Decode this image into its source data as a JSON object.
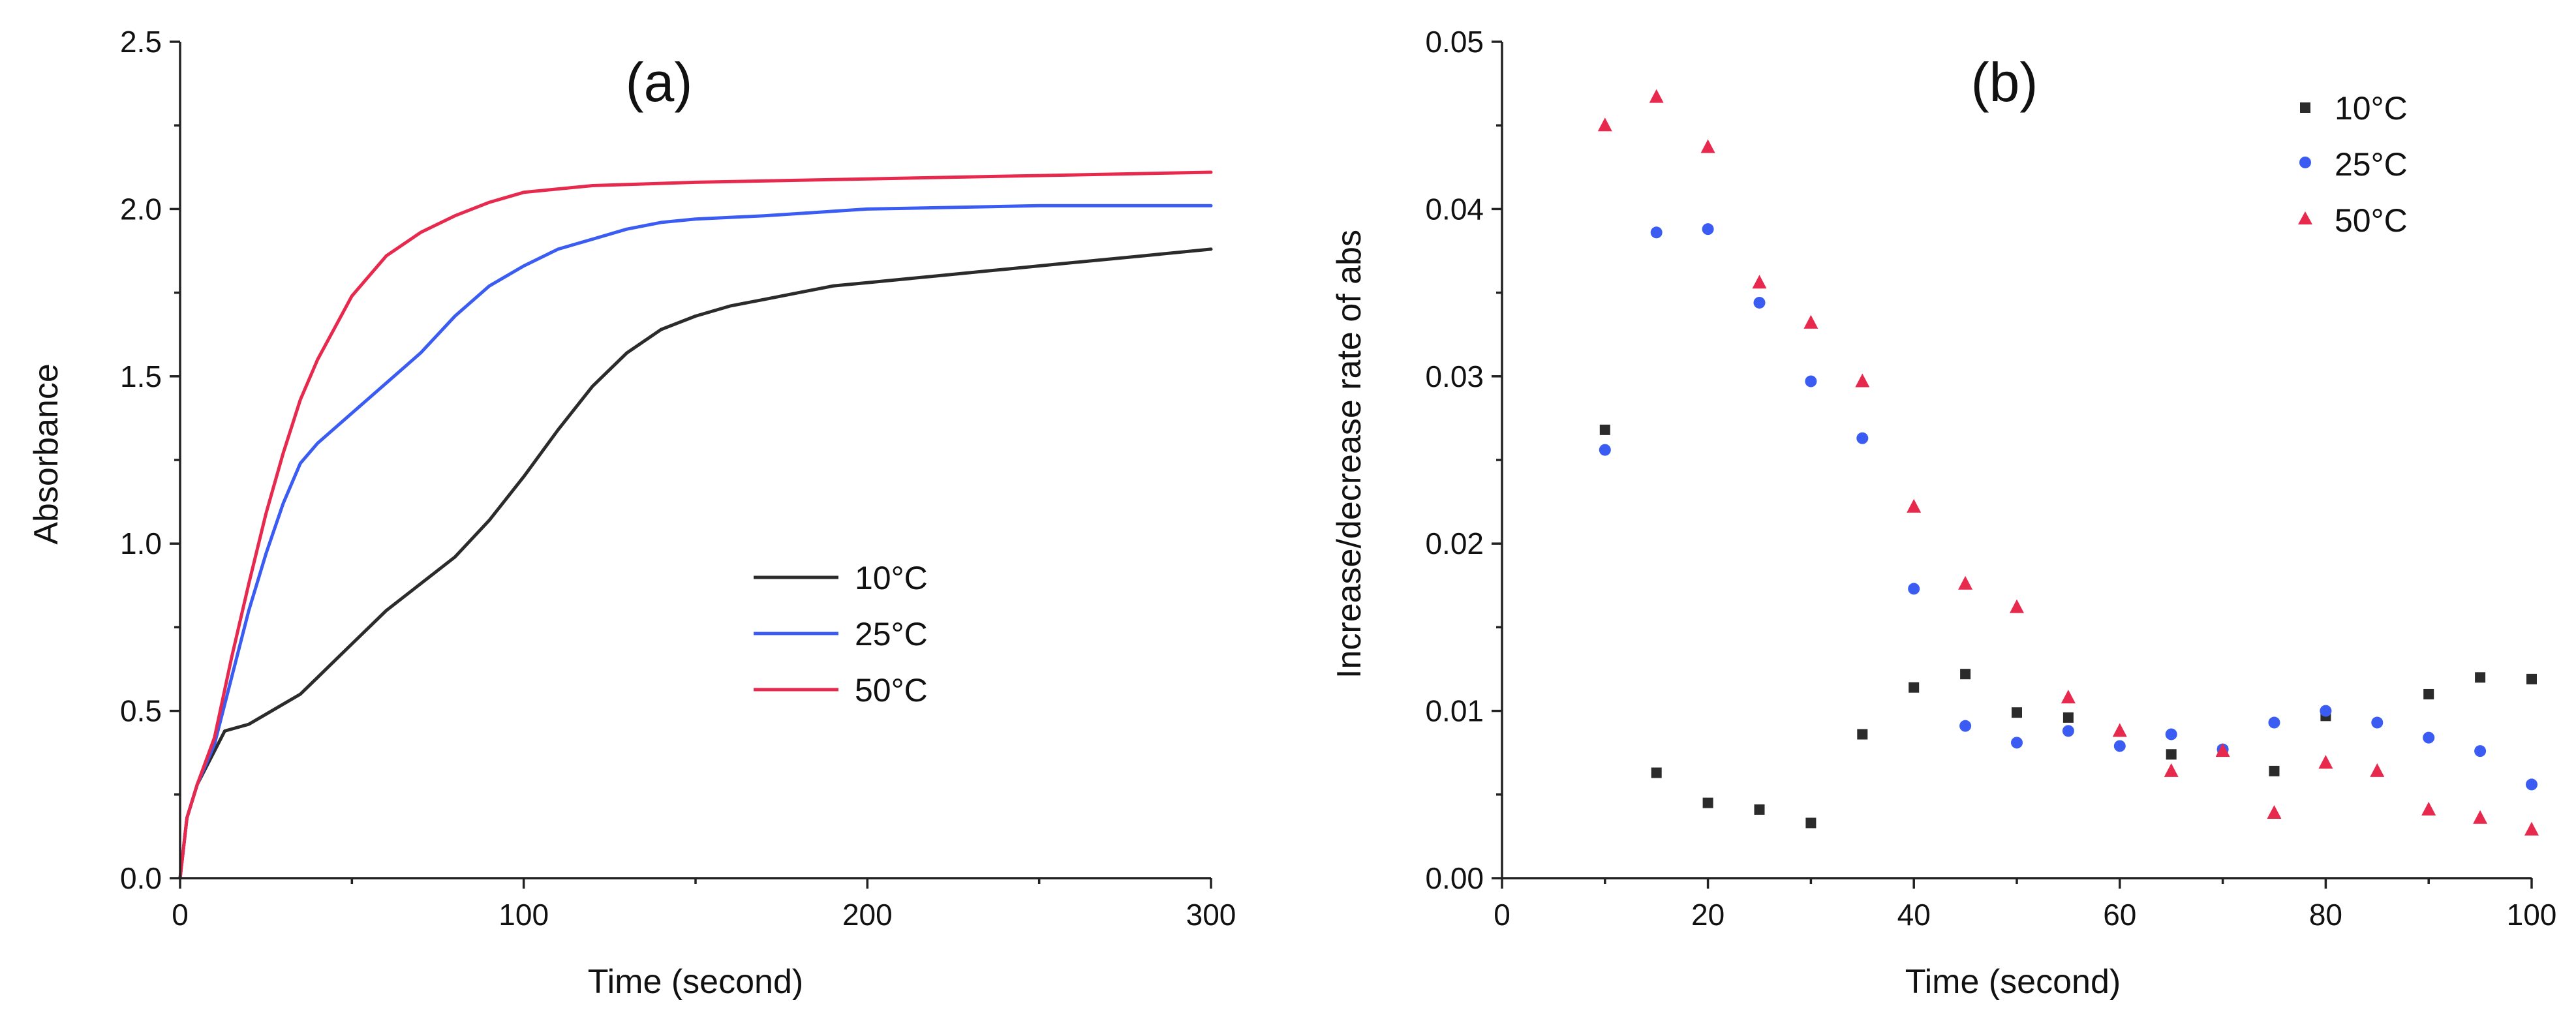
{
  "chart_data": [
    {
      "type": "line",
      "title": "(a)",
      "xlabel": "Time (second)",
      "ylabel": "Absorbance",
      "xlim": [
        0,
        300
      ],
      "ylim": [
        0.0,
        2.5
      ],
      "xticks": [
        0,
        100,
        200,
        300
      ],
      "yticks": [
        0.0,
        0.5,
        1.0,
        1.5,
        2.0,
        2.5
      ],
      "xtick_labels": [
        "0",
        "100",
        "200",
        "300"
      ],
      "ytick_labels": [
        "0.0",
        "0.5",
        "1.0",
        "1.5",
        "2.0",
        "2.5"
      ],
      "grid": false,
      "legend_position": "center-right",
      "series": [
        {
          "name": "10°C",
          "color": "#2b2b2b",
          "x": [
            0,
            2,
            5,
            10,
            13,
            20,
            25,
            30,
            35,
            40,
            50,
            60,
            70,
            80,
            90,
            100,
            110,
            120,
            130,
            140,
            150,
            160,
            170,
            180,
            190,
            200,
            220,
            240,
            260,
            280,
            300
          ],
          "y": [
            0.0,
            0.18,
            0.28,
            0.38,
            0.44,
            0.46,
            0.49,
            0.52,
            0.55,
            0.6,
            0.7,
            0.8,
            0.88,
            0.96,
            1.07,
            1.2,
            1.34,
            1.47,
            1.57,
            1.64,
            1.68,
            1.71,
            1.73,
            1.75,
            1.77,
            1.78,
            1.8,
            1.82,
            1.84,
            1.86,
            1.88
          ]
        },
        {
          "name": "25°C",
          "color": "#3a5cf2",
          "x": [
            0,
            2,
            5,
            10,
            15,
            20,
            25,
            30,
            35,
            40,
            50,
            60,
            70,
            80,
            90,
            100,
            110,
            120,
            130,
            140,
            150,
            170,
            200,
            250,
            300
          ],
          "y": [
            0.0,
            0.18,
            0.28,
            0.4,
            0.6,
            0.8,
            0.97,
            1.12,
            1.24,
            1.3,
            1.39,
            1.48,
            1.57,
            1.68,
            1.77,
            1.83,
            1.88,
            1.91,
            1.94,
            1.96,
            1.97,
            1.98,
            2.0,
            2.01,
            2.01
          ]
        },
        {
          "name": "50°C",
          "color": "#e8294e",
          "x": [
            0,
            2,
            5,
            10,
            15,
            20,
            25,
            30,
            35,
            40,
            50,
            60,
            70,
            80,
            90,
            100,
            110,
            120,
            150,
            200,
            250,
            300
          ],
          "y": [
            0.0,
            0.18,
            0.28,
            0.42,
            0.66,
            0.88,
            1.09,
            1.27,
            1.43,
            1.55,
            1.74,
            1.86,
            1.93,
            1.98,
            2.02,
            2.05,
            2.06,
            2.07,
            2.08,
            2.09,
            2.1,
            2.11
          ]
        }
      ]
    },
    {
      "type": "scatter",
      "title": "(b)",
      "xlabel": "Time (second)",
      "ylabel": "Increase/decrease rate of abs",
      "xlim": [
        0,
        100
      ],
      "ylim": [
        0.0,
        0.05
      ],
      "xticks": [
        0,
        20,
        40,
        60,
        80,
        100
      ],
      "yticks": [
        0.0,
        0.01,
        0.02,
        0.03,
        0.04,
        0.05
      ],
      "xtick_labels": [
        "0",
        "20",
        "40",
        "60",
        "80",
        "100"
      ],
      "ytick_labels": [
        "0.00",
        "0.01",
        "0.02",
        "0.03",
        "0.04",
        "0.05"
      ],
      "grid": false,
      "legend_position": "top-right",
      "series": [
        {
          "name": "10°C",
          "color": "#2b2b2b",
          "marker": "square",
          "x": [
            10,
            15,
            20,
            25,
            30,
            35,
            40,
            45,
            50,
            55,
            65,
            70,
            75,
            80,
            90,
            95,
            100
          ],
          "y": [
            0.0268,
            0.0063,
            0.0045,
            0.0041,
            0.0033,
            0.0086,
            0.0114,
            0.0122,
            0.0099,
            0.0096,
            0.0074,
            0.0076,
            0.0064,
            0.0097,
            0.011,
            0.012,
            0.0119
          ]
        },
        {
          "name": "25°C",
          "color": "#3a5cf2",
          "marker": "circle",
          "x": [
            10,
            15,
            20,
            25,
            30,
            35,
            40,
            45,
            50,
            55,
            60,
            65,
            70,
            75,
            80,
            85,
            90,
            95,
            100
          ],
          "y": [
            0.0256,
            0.0386,
            0.0388,
            0.0344,
            0.0297,
            0.0263,
            0.0173,
            0.0091,
            0.0081,
            0.0088,
            0.0079,
            0.0086,
            0.0077,
            0.0093,
            0.01,
            0.0093,
            0.0084,
            0.0076,
            0.0056
          ]
        },
        {
          "name": "50°C",
          "color": "#e8294e",
          "marker": "triangle",
          "x": [
            10,
            15,
            20,
            25,
            30,
            35,
            40,
            45,
            50,
            55,
            60,
            65,
            70,
            75,
            80,
            85,
            90,
            95,
            100
          ],
          "y": [
            0.045,
            0.0467,
            0.0437,
            0.0356,
            0.0332,
            0.0297,
            0.0222,
            0.0176,
            0.0162,
            0.0108,
            0.0088,
            0.0064,
            0.0076,
            0.0039,
            0.0069,
            0.0064,
            0.0041,
            0.0036,
            0.0029
          ]
        }
      ]
    }
  ]
}
